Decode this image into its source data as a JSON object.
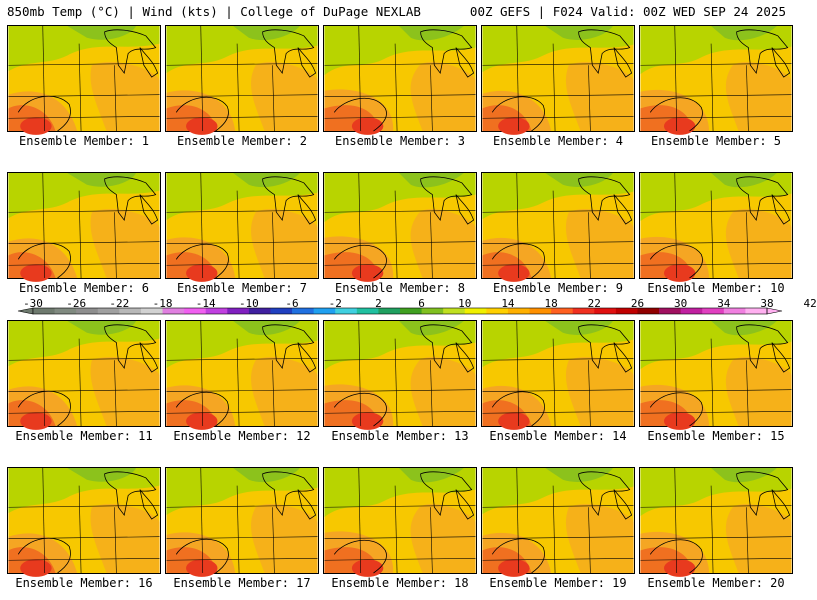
{
  "header": {
    "left": "850mb Temp (°C) | Wind (kts) | College of DuPage NEXLAB",
    "right": "00Z GEFS | F024 Valid: 00Z WED SEP 24 2025"
  },
  "colorbar": {
    "labels": [
      "-30",
      "-26",
      "-22",
      "-18",
      "-14",
      "-10",
      "-6",
      "-2",
      "2",
      "6",
      "10",
      "14",
      "18",
      "22",
      "26",
      "30",
      "34",
      "38",
      "42"
    ],
    "colors": [
      "#6e7a6e",
      "#808a80",
      "#8e8e8e",
      "#a0a0a0",
      "#b8b8b8",
      "#d2d2d2",
      "#e080e0",
      "#f060f0",
      "#c040e0",
      "#8020c0",
      "#4020a0",
      "#2040c0",
      "#2070e0",
      "#20a0f0",
      "#40d0e0",
      "#20c0a0",
      "#20a060",
      "#40a020",
      "#80c020",
      "#c0e020",
      "#f0f000",
      "#ffd000",
      "#ffb000",
      "#ff9000",
      "#ff6020",
      "#f03020",
      "#e01010",
      "#c00000",
      "#900000",
      "#a01060",
      "#c020a0",
      "#e040c0",
      "#f080e0",
      "#ffb0f0"
    ]
  },
  "members": [
    {
      "label": "Ensemble Member: 1"
    },
    {
      "label": "Ensemble Member: 2"
    },
    {
      "label": "Ensemble Member: 3"
    },
    {
      "label": "Ensemble Member: 4"
    },
    {
      "label": "Ensemble Member: 5"
    },
    {
      "label": "Ensemble Member: 6"
    },
    {
      "label": "Ensemble Member: 7"
    },
    {
      "label": "Ensemble Member: 8"
    },
    {
      "label": "Ensemble Member: 9"
    },
    {
      "label": "Ensemble Member: 10"
    },
    {
      "label": "Ensemble Member: 11"
    },
    {
      "label": "Ensemble Member: 12"
    },
    {
      "label": "Ensemble Member: 13"
    },
    {
      "label": "Ensemble Member: 14"
    },
    {
      "label": "Ensemble Member: 15"
    },
    {
      "label": "Ensemble Member: 16"
    },
    {
      "label": "Ensemble Member: 17"
    },
    {
      "label": "Ensemble Member: 18"
    },
    {
      "label": "Ensemble Member: 19"
    },
    {
      "label": "Ensemble Member: 20"
    }
  ],
  "map_colors": {
    "base": "#f7c800",
    "cool": "#b8d400",
    "cooler": "#8cc21c",
    "warm": "#f5a623",
    "hot": "#f07020",
    "hottest": "#e83a1e",
    "border": "#000000"
  }
}
